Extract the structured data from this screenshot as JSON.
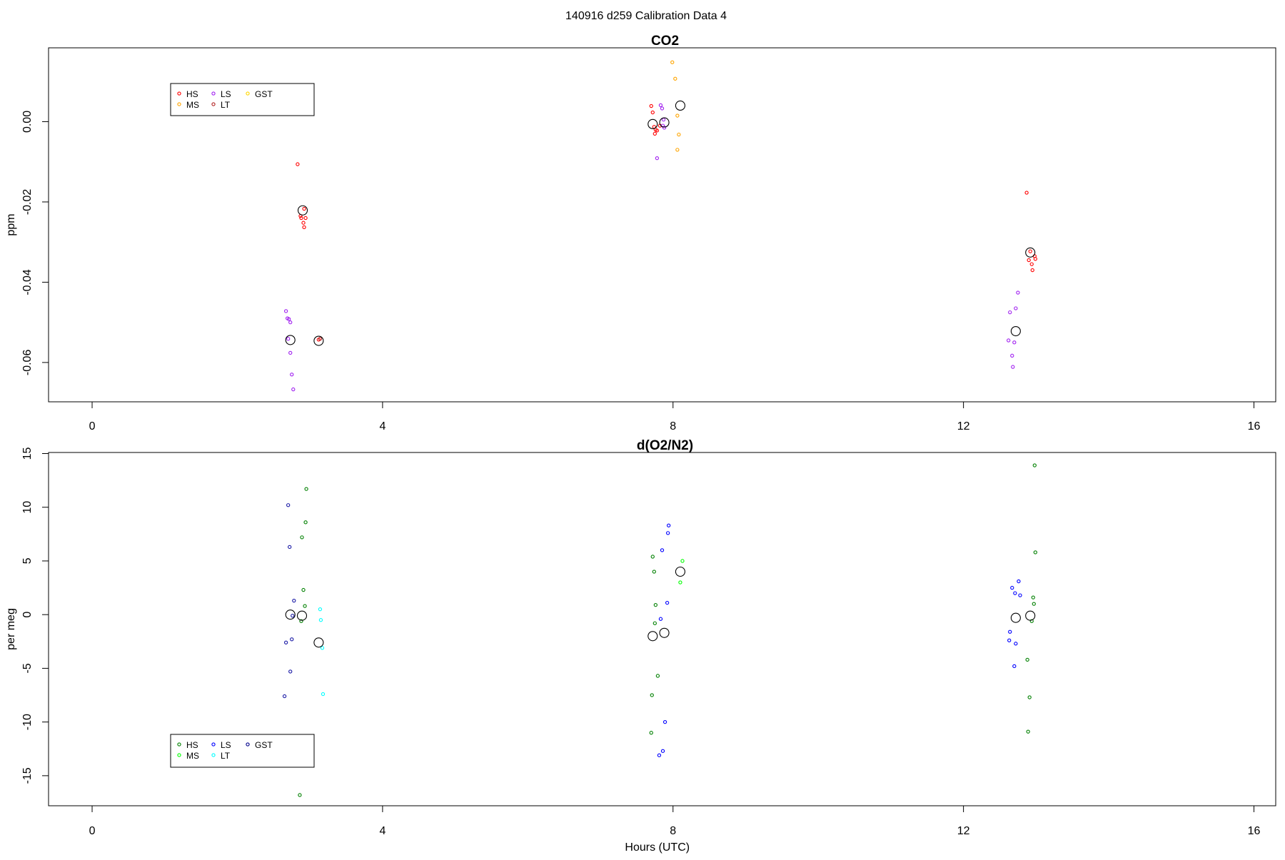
{
  "figure": {
    "title": "140916   d259   Calibration Data 4"
  },
  "chart_data": [
    {
      "type": "scatter",
      "title": "CO2",
      "xlabel": "",
      "ylabel": "ppm",
      "xlim": [
        -0.6,
        16.3
      ],
      "ylim": [
        -0.0698,
        0.0184
      ],
      "xticks": [
        0,
        4,
        8,
        12,
        16
      ],
      "xtick_labels": [
        "0",
        "4",
        "8",
        "12",
        "16"
      ],
      "yticks": [
        -0.06,
        -0.04,
        -0.02,
        0.0
      ],
      "ytick_labels": [
        "-0.06",
        "-0.04",
        "-0.02",
        "0.00"
      ],
      "grid": false,
      "legend": {
        "placement": "top-left",
        "entries": [
          {
            "name": "HS",
            "color": "#ff0000"
          },
          {
            "name": "MS",
            "color": "#ffa500"
          },
          {
            "name": "LS",
            "color": "#a020f0"
          },
          {
            "name": "LT",
            "color": "#b22222"
          },
          {
            "name": "GST",
            "color": "#ffd700"
          }
        ]
      },
      "series": [
        {
          "name": "HS",
          "color": "#ff0000",
          "points": [
            [
              2.83,
              -0.0106
            ],
            [
              2.92,
              -0.0217
            ],
            [
              2.87,
              -0.0235
            ],
            [
              2.88,
              -0.024
            ],
            [
              2.94,
              -0.024
            ],
            [
              2.91,
              -0.0252
            ],
            [
              2.92,
              -0.0263
            ],
            [
              3.12,
              -0.0543
            ],
            [
              7.7,
              0.0039
            ],
            [
              7.72,
              0.0023
            ],
            [
              7.74,
              -0.0013
            ],
            [
              7.76,
              -0.002
            ],
            [
              7.75,
              -0.003
            ],
            [
              7.78,
              -0.0022
            ],
            [
              7.82,
              -0.001
            ],
            [
              12.87,
              -0.0177
            ],
            [
              12.92,
              -0.0323
            ],
            [
              12.9,
              -0.0345
            ],
            [
              12.94,
              -0.0355
            ],
            [
              12.95,
              -0.037
            ],
            [
              12.98,
              -0.0335
            ],
            [
              12.99,
              -0.0342
            ]
          ]
        },
        {
          "name": "MS",
          "color": "#ffa500",
          "points": [
            [
              7.99,
              0.0148
            ],
            [
              8.03,
              0.0107
            ],
            [
              8.06,
              0.0015
            ],
            [
              8.08,
              -0.0032
            ],
            [
              8.06,
              -0.007
            ]
          ]
        },
        {
          "name": "LS",
          "color": "#a020f0",
          "points": [
            [
              2.67,
              -0.0472
            ],
            [
              2.69,
              -0.049
            ],
            [
              2.71,
              -0.0492
            ],
            [
              2.73,
              -0.05
            ],
            [
              2.7,
              -0.0541
            ],
            [
              2.73,
              -0.0576
            ],
            [
              2.75,
              -0.063
            ],
            [
              2.77,
              -0.0667
            ],
            [
              7.83,
              0.0041
            ],
            [
              7.85,
              0.0033
            ],
            [
              7.87,
              0.0005
            ],
            [
              7.88,
              -0.0015
            ],
            [
              7.86,
              -0.001
            ],
            [
              7.78,
              -0.0091
            ],
            [
              12.64,
              -0.0475
            ],
            [
              12.72,
              -0.0465
            ],
            [
              12.75,
              -0.0426
            ],
            [
              12.62,
              -0.0545
            ],
            [
              12.7,
              -0.055
            ],
            [
              12.67,
              -0.0583
            ],
            [
              12.68,
              -0.0611
            ]
          ]
        },
        {
          "name": "LT",
          "color": "#b22222",
          "points": [
            [
              3.14,
              -0.0541
            ]
          ]
        },
        {
          "name": "GST",
          "color": "#ffd700",
          "points": []
        }
      ],
      "means": [
        [
          2.73,
          -0.0544
        ],
        [
          2.9,
          -0.0221
        ],
        [
          3.12,
          -0.0546
        ],
        [
          7.72,
          -0.0006
        ],
        [
          7.88,
          -0.0002
        ],
        [
          8.1,
          0.004
        ],
        [
          12.72,
          -0.0522
        ],
        [
          12.92,
          -0.0326
        ]
      ]
    },
    {
      "type": "scatter",
      "title": "d(O2/N2)",
      "xlabel": "Hours (UTC)",
      "ylabel": "per meg",
      "xlim": [
        -0.6,
        16.3
      ],
      "ylim": [
        -17.8,
        15.1
      ],
      "xticks": [
        0,
        4,
        8,
        12,
        16
      ],
      "xtick_labels": [
        "0",
        "4",
        "8",
        "12",
        "16"
      ],
      "yticks": [
        -15,
        -10,
        -5,
        0,
        5,
        10,
        15
      ],
      "ytick_labels": [
        "-15",
        "-10",
        "-5",
        "0",
        "5",
        "10",
        "15"
      ],
      "grid": false,
      "legend": {
        "placement": "bottom-left",
        "entries": [
          {
            "name": "HS",
            "color": "#008000"
          },
          {
            "name": "MS",
            "color": "#00ff00"
          },
          {
            "name": "LS",
            "color": "#0000ff"
          },
          {
            "name": "LT",
            "color": "#00ffff"
          },
          {
            "name": "GST",
            "color": "#00008b"
          }
        ]
      },
      "series": [
        {
          "name": "HS",
          "color": "#008000",
          "points": [
            [
              2.95,
              11.7
            ],
            [
              2.94,
              8.6
            ],
            [
              2.89,
              7.2
            ],
            [
              2.91,
              2.3
            ],
            [
              2.93,
              0.8
            ],
            [
              2.88,
              -0.6
            ],
            [
              2.86,
              -16.8
            ],
            [
              7.72,
              5.4
            ],
            [
              7.74,
              4.0
            ],
            [
              7.76,
              0.9
            ],
            [
              7.75,
              -0.8
            ],
            [
              7.79,
              -5.7
            ],
            [
              7.71,
              -7.5
            ],
            [
              7.7,
              -11.0
            ],
            [
              12.98,
              13.9
            ],
            [
              12.99,
              5.8
            ],
            [
              12.96,
              1.6
            ],
            [
              12.97,
              1.0
            ],
            [
              12.94,
              -0.6
            ],
            [
              12.88,
              -4.2
            ],
            [
              12.91,
              -7.7
            ],
            [
              12.89,
              -10.9
            ]
          ]
        },
        {
          "name": "MS",
          "color": "#00ff00",
          "points": [
            [
              8.13,
              5.0
            ],
            [
              8.1,
              3.0
            ]
          ]
        },
        {
          "name": "LS",
          "color": "#0000ff",
          "points": [
            [
              7.94,
              8.3
            ],
            [
              7.93,
              7.6
            ],
            [
              7.85,
              6.0
            ],
            [
              7.92,
              1.1
            ],
            [
              7.83,
              -0.4
            ],
            [
              7.89,
              -10.0
            ],
            [
              7.86,
              -12.7
            ],
            [
              7.81,
              -13.1
            ],
            [
              12.76,
              3.1
            ],
            [
              12.67,
              2.5
            ],
            [
              12.71,
              2.0
            ],
            [
              12.78,
              1.8
            ],
            [
              12.64,
              -1.6
            ],
            [
              12.63,
              -2.4
            ],
            [
              12.72,
              -2.7
            ],
            [
              12.7,
              -4.8
            ]
          ]
        },
        {
          "name": "LT",
          "color": "#00ffff",
          "points": [
            [
              3.14,
              0.5
            ],
            [
              3.15,
              -0.5
            ],
            [
              3.17,
              -3.1
            ],
            [
              3.18,
              -7.4
            ]
          ]
        },
        {
          "name": "GST",
          "color": "#1a1aa6",
          "points": [
            [
              2.7,
              10.2
            ],
            [
              2.72,
              6.3
            ],
            [
              2.78,
              1.3
            ],
            [
              2.76,
              -0.1
            ],
            [
              2.75,
              -2.3
            ],
            [
              2.67,
              -2.6
            ],
            [
              2.73,
              -5.3
            ],
            [
              2.65,
              -7.6
            ]
          ]
        }
      ],
      "means": [
        [
          2.73,
          0.0
        ],
        [
          2.89,
          -0.1
        ],
        [
          3.12,
          -2.6
        ],
        [
          7.72,
          -2.0
        ],
        [
          7.88,
          -1.7
        ],
        [
          8.1,
          4.0
        ],
        [
          12.72,
          -0.3
        ],
        [
          12.92,
          -0.1
        ]
      ]
    }
  ]
}
